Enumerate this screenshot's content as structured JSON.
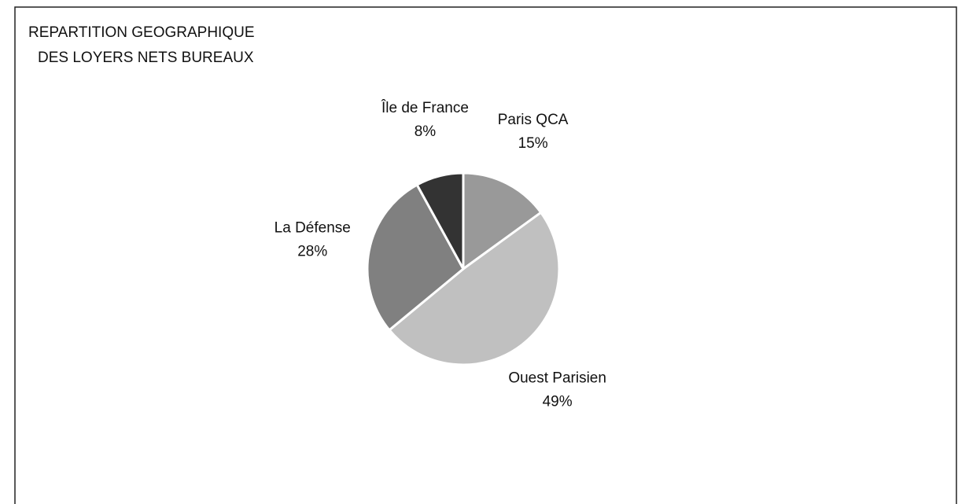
{
  "chart_data": {
    "type": "pie",
    "title": [
      "REPARTITION GEOGRAPHIQUE",
      "DES LOYERS NETS BUREAUX"
    ],
    "categories": [
      "Paris QCA",
      "Ouest Parisien",
      "La Défense",
      "Île de France"
    ],
    "values": [
      15,
      49,
      28,
      8
    ],
    "value_labels": [
      "15%",
      "49%",
      "28%",
      "8%"
    ],
    "colors": [
      "#999999",
      "#c0c0c0",
      "#808080",
      "#333333"
    ]
  }
}
